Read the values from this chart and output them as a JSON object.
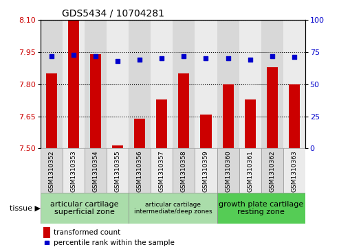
{
  "title": "GDS5434 / 10704281",
  "samples": [
    "GSM1310352",
    "GSM1310353",
    "GSM1310354",
    "GSM1310355",
    "GSM1310356",
    "GSM1310357",
    "GSM1310358",
    "GSM1310359",
    "GSM1310360",
    "GSM1310361",
    "GSM1310362",
    "GSM1310363"
  ],
  "transformed_count": [
    7.85,
    8.1,
    7.94,
    7.515,
    7.64,
    7.73,
    7.85,
    7.66,
    7.8,
    7.73,
    7.88,
    7.8
  ],
  "percentile_rank": [
    72,
    73,
    72,
    68,
    69,
    70,
    72,
    70,
    70,
    69,
    72,
    71
  ],
  "ylim_left": [
    7.5,
    8.1
  ],
  "ylim_right": [
    0,
    100
  ],
  "yticks_left": [
    7.5,
    7.65,
    7.8,
    7.95,
    8.1
  ],
  "yticks_right": [
    0,
    25,
    50,
    75,
    100
  ],
  "bar_color": "#cc0000",
  "dot_color": "#0000cc",
  "col_colors": [
    "#d8d8d8",
    "#ebebeb"
  ],
  "tissue_groups": [
    {
      "label": "articular cartilage\nsuperficial zone",
      "start": 0,
      "end": 3,
      "color": "#aaddaa",
      "fontsize": 8
    },
    {
      "label": "articular cartilage\nintermediate/deep zones",
      "start": 4,
      "end": 7,
      "color": "#aaddaa",
      "fontsize": 6.5
    },
    {
      "label": "growth plate cartilage\nresting zone",
      "start": 8,
      "end": 11,
      "color": "#55cc55",
      "fontsize": 8
    }
  ],
  "tissue_label": "tissue",
  "legend_bar_label": "transformed count",
  "legend_dot_label": "percentile rank within the sample",
  "bar_width": 0.5,
  "xticklabel_fontsize": 6.5,
  "yticklabel_left_fontsize": 8,
  "yticklabel_right_fontsize": 8,
  "title_fontsize": 10
}
